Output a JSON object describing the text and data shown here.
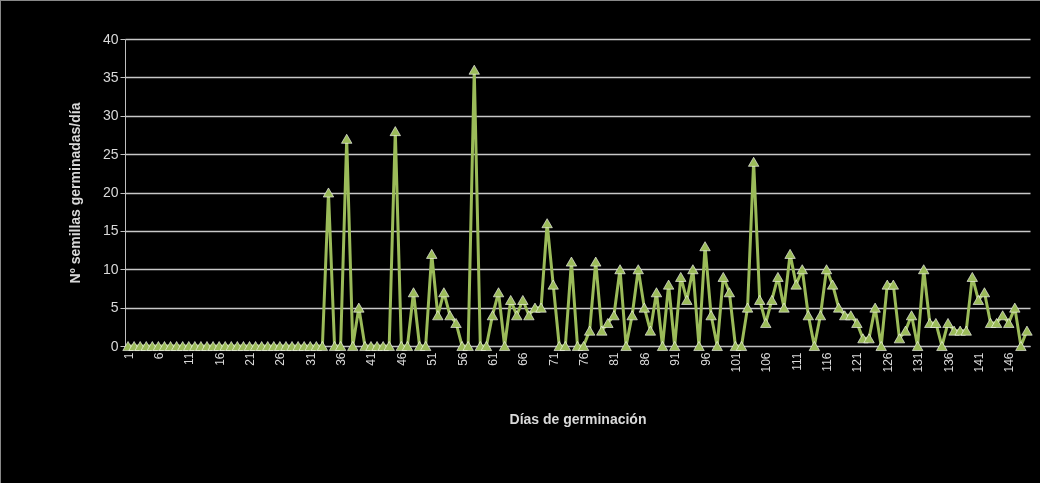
{
  "chart_data": {
    "type": "line",
    "xlabel": "Días de germinación",
    "ylabel": "Nº semillas germinadas/día",
    "categories": [
      "1",
      null,
      null,
      null,
      null,
      "6",
      null,
      null,
      null,
      null,
      "11",
      null,
      null,
      null,
      null,
      "16",
      null,
      null,
      null,
      null,
      "21",
      null,
      null,
      null,
      null,
      "26",
      null,
      null,
      null,
      null,
      "31",
      null,
      null,
      null,
      null,
      "36",
      null,
      null,
      null,
      null,
      "41",
      null,
      null,
      null,
      null,
      "46",
      null,
      null,
      null,
      null,
      "51",
      null,
      null,
      null,
      null,
      "56",
      null,
      null,
      null,
      null,
      "61",
      null,
      null,
      null,
      null,
      "66",
      null,
      null,
      null,
      null,
      "71",
      null,
      null,
      null,
      null,
      "76",
      null,
      null,
      null,
      null,
      "81",
      null,
      null,
      null,
      null,
      "86",
      null,
      null,
      null,
      null,
      "91",
      null,
      null,
      null,
      null,
      "96",
      null,
      null,
      null,
      null,
      "101",
      null,
      null,
      null,
      null,
      "106",
      null,
      null,
      null,
      null,
      "111",
      null,
      null,
      null,
      null,
      "116",
      null,
      null,
      null,
      null,
      "121",
      null,
      null,
      null,
      null,
      "126",
      null,
      null,
      null,
      null,
      "131",
      null,
      null,
      null,
      null,
      "136",
      null,
      null,
      null,
      null,
      "141",
      null,
      null,
      null,
      null,
      "146",
      null,
      null,
      null
    ],
    "series": [
      {
        "color": "#9bbb59",
        "values": [
          0,
          0,
          0,
          0,
          0,
          0,
          0,
          0,
          0,
          0,
          0,
          0,
          0,
          0,
          0,
          0,
          0,
          0,
          0,
          0,
          0,
          0,
          0,
          0,
          0,
          0,
          0,
          0,
          0,
          0,
          0,
          0,
          0,
          20,
          0,
          0,
          27,
          0,
          5,
          0,
          0,
          0,
          0,
          0,
          28,
          0,
          0,
          7,
          0,
          0,
          12,
          4,
          7,
          4,
          3,
          0,
          0,
          36,
          0,
          0,
          4,
          7,
          0,
          6,
          4,
          6,
          4,
          5,
          5,
          16,
          8,
          0,
          0,
          11,
          0,
          0,
          2,
          11,
          2,
          3,
          4,
          10,
          0,
          4,
          10,
          5,
          2,
          7,
          0,
          8,
          0,
          9,
          6,
          10,
          0,
          13,
          4,
          0,
          9,
          7,
          0,
          0,
          5,
          24,
          6,
          3,
          6,
          9,
          5,
          12,
          8,
          10,
          4,
          0,
          4,
          10,
          8,
          5,
          4,
          4,
          3,
          1,
          1,
          5,
          0,
          8,
          8,
          1,
          2,
          4,
          0,
          10,
          3,
          3,
          0,
          3,
          2,
          2,
          2,
          9,
          6,
          7,
          3,
          3,
          4,
          3,
          5,
          0,
          2
        ]
      }
    ],
    "ylim": [
      0,
      40
    ],
    "yticks": [
      0,
      5,
      10,
      15,
      20,
      25,
      30,
      35,
      40
    ],
    "grid": "y",
    "marker": "triangle",
    "line_style": "solid"
  }
}
